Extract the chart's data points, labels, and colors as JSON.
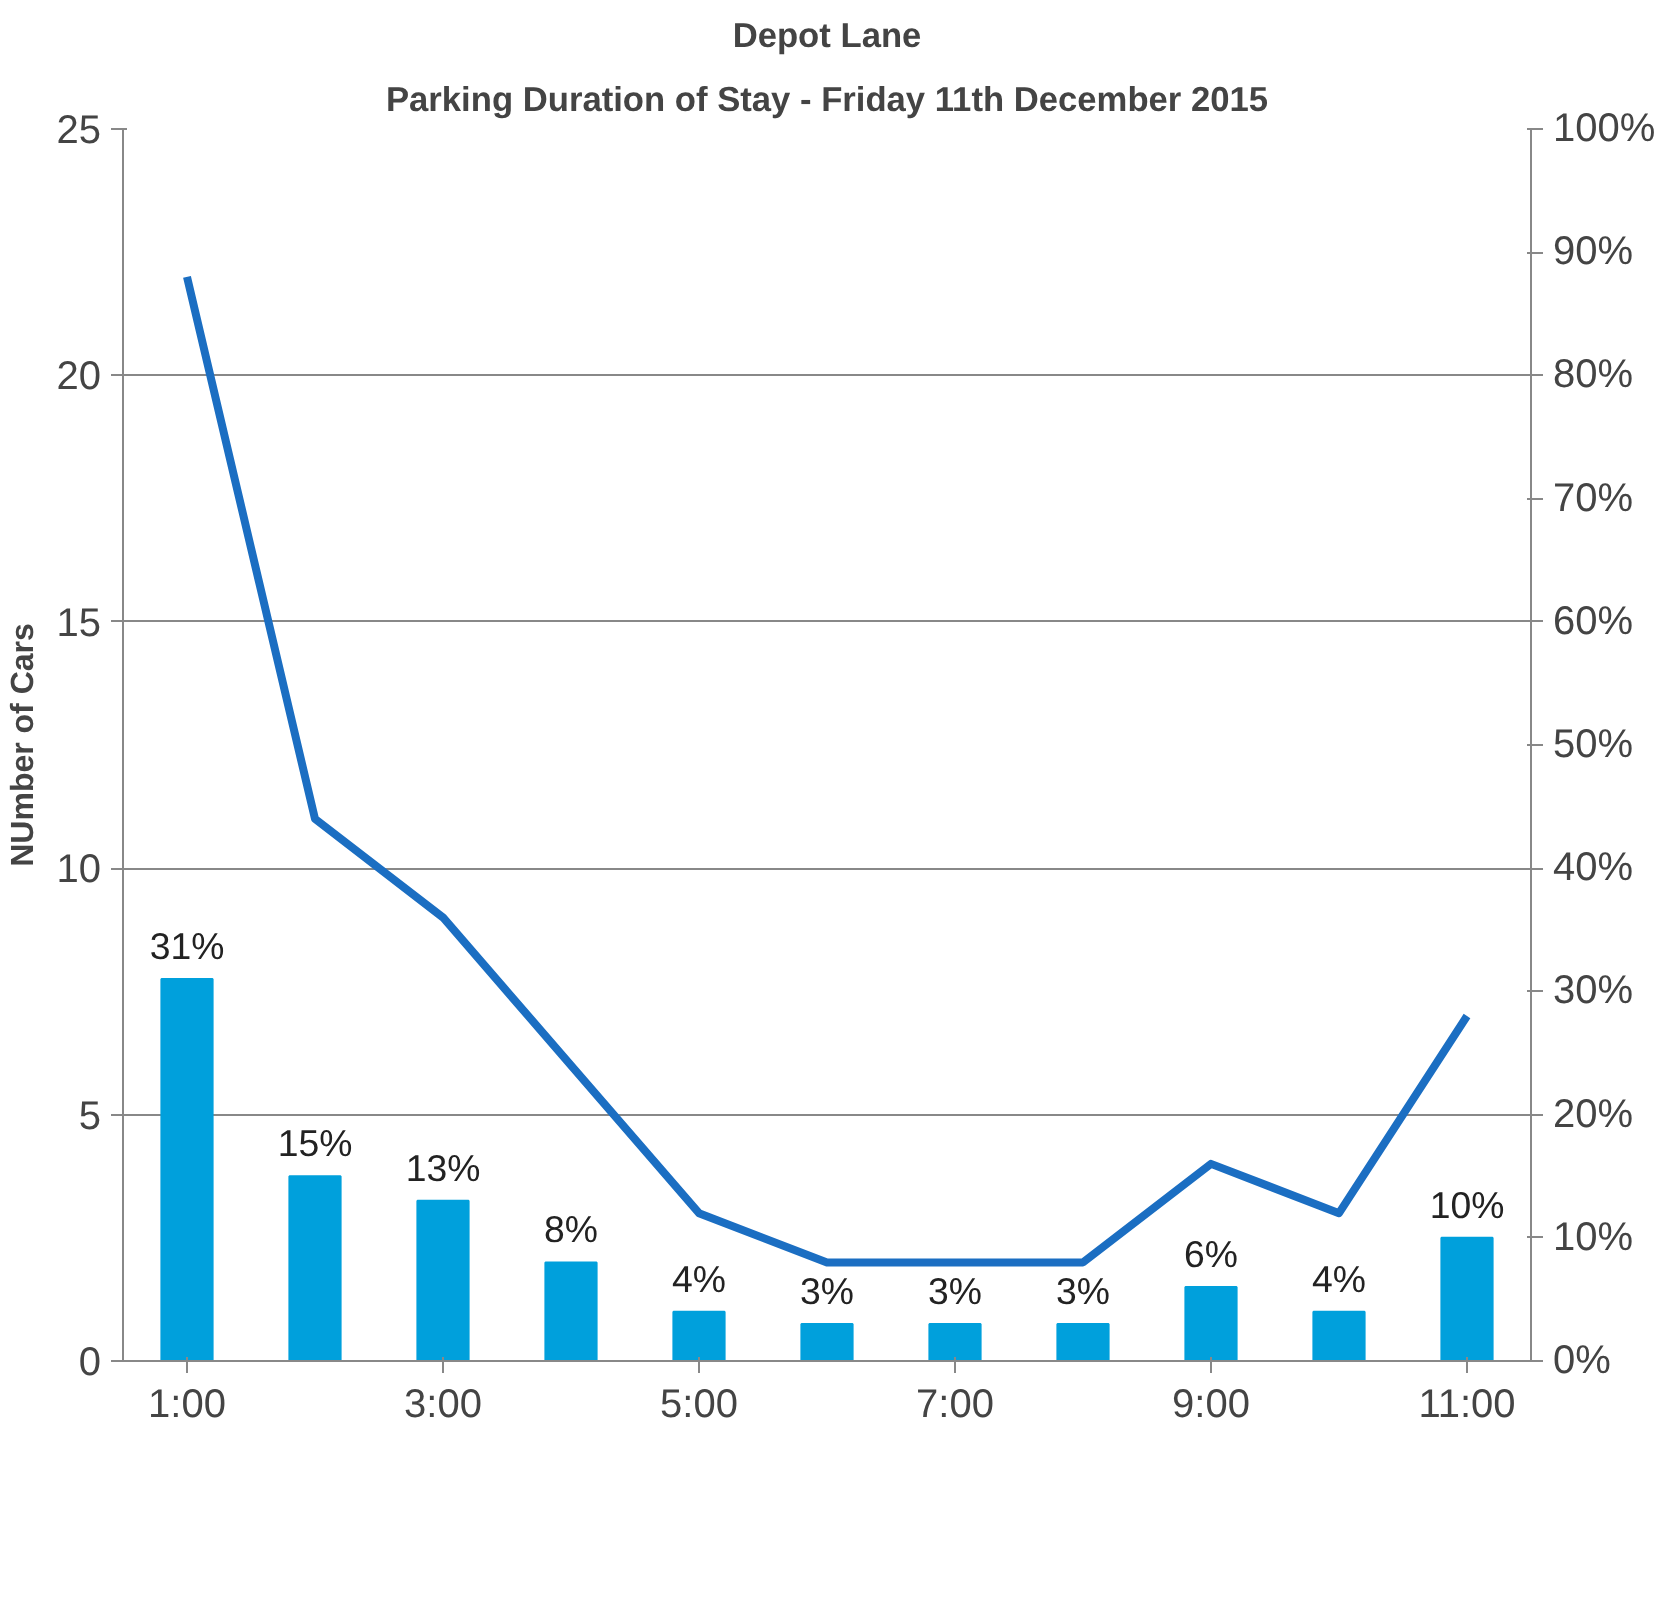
{
  "chart_data": {
    "type": "bar",
    "title": "Depot Lane",
    "subtitle": "Parking Duration of Stay - Friday 11th December 2015",
    "ylabel": "NUmber of Cars",
    "categories": [
      "1:00",
      null,
      "3:00",
      null,
      "5:00",
      null,
      "7:00",
      null,
      "9:00",
      null,
      "11:00"
    ],
    "series": [
      {
        "axis": "y2",
        "color": "#00a0dc",
        "values": [
          31,
          15,
          13,
          8,
          4,
          3,
          3,
          3,
          6,
          4,
          10
        ],
        "value_labels": [
          "31%",
          "15%",
          "13%",
          "8%",
          "4%",
          "3%",
          "3%",
          "3%",
          "6%",
          "4%",
          "10%"
        ]
      },
      {
        "type": "line",
        "color": "#1b6ec2",
        "values": [
          22,
          11,
          9,
          6,
          3,
          2,
          2,
          2,
          4,
          3,
          7
        ]
      }
    ],
    "ylim": [
      0,
      25
    ],
    "yticks": [
      0,
      5,
      10,
      15,
      20,
      25
    ],
    "y2lim": [
      0,
      100
    ],
    "y2ticks": [
      {
        "value": 0,
        "label": "0%"
      },
      {
        "value": 10,
        "label": "10%"
      },
      {
        "value": 20,
        "label": "20%"
      },
      {
        "value": 30,
        "label": "30%"
      },
      {
        "value": 40,
        "label": "40%"
      },
      {
        "value": 50,
        "label": "50%"
      },
      {
        "value": 60,
        "label": "60%"
      },
      {
        "value": 70,
        "label": "70%"
      },
      {
        "value": 80,
        "label": "80%"
      },
      {
        "value": 90,
        "label": "90%"
      },
      {
        "value": 100,
        "label": "100%"
      }
    ],
    "grid": "y"
  }
}
